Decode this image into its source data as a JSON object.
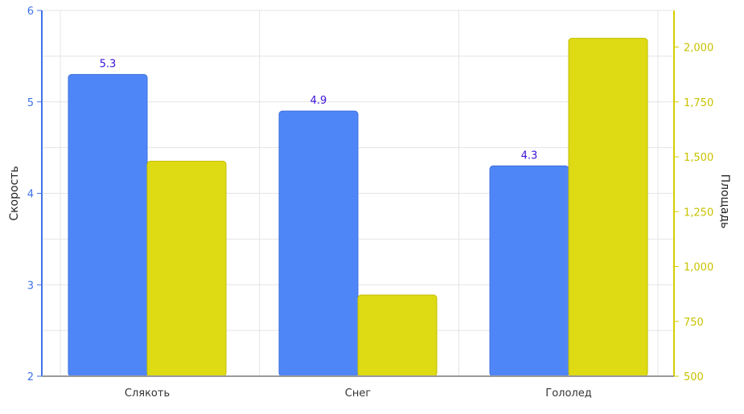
{
  "chart_data": {
    "type": "bar",
    "categories": [
      "Слякоть",
      "Снег",
      "Гололед"
    ],
    "series": [
      {
        "axis": "left",
        "color": "#4f86f7",
        "values": [
          5.3,
          4.9,
          4.3
        ],
        "data_labels": [
          "5.3",
          "4.9",
          "4.3"
        ]
      },
      {
        "axis": "right",
        "color": "#dedb15",
        "values": [
          1480,
          870,
          2040
        ]
      }
    ],
    "ylabel": "Скорость",
    "y2label": "Площадь",
    "ylim": [
      2,
      6
    ],
    "y2lim": [
      500,
      2166.67
    ],
    "y_ticks": [
      "2",
      "3",
      "4",
      "5",
      "6"
    ],
    "y2_ticks": [
      "500",
      "750",
      "1,000",
      "1,250",
      "1,500",
      "1,750",
      "2,000"
    ],
    "grid": true,
    "colors": {
      "left_axis": "#3f73e8",
      "right_axis": "#d4ce00",
      "grid": "#e4e4e4"
    }
  }
}
